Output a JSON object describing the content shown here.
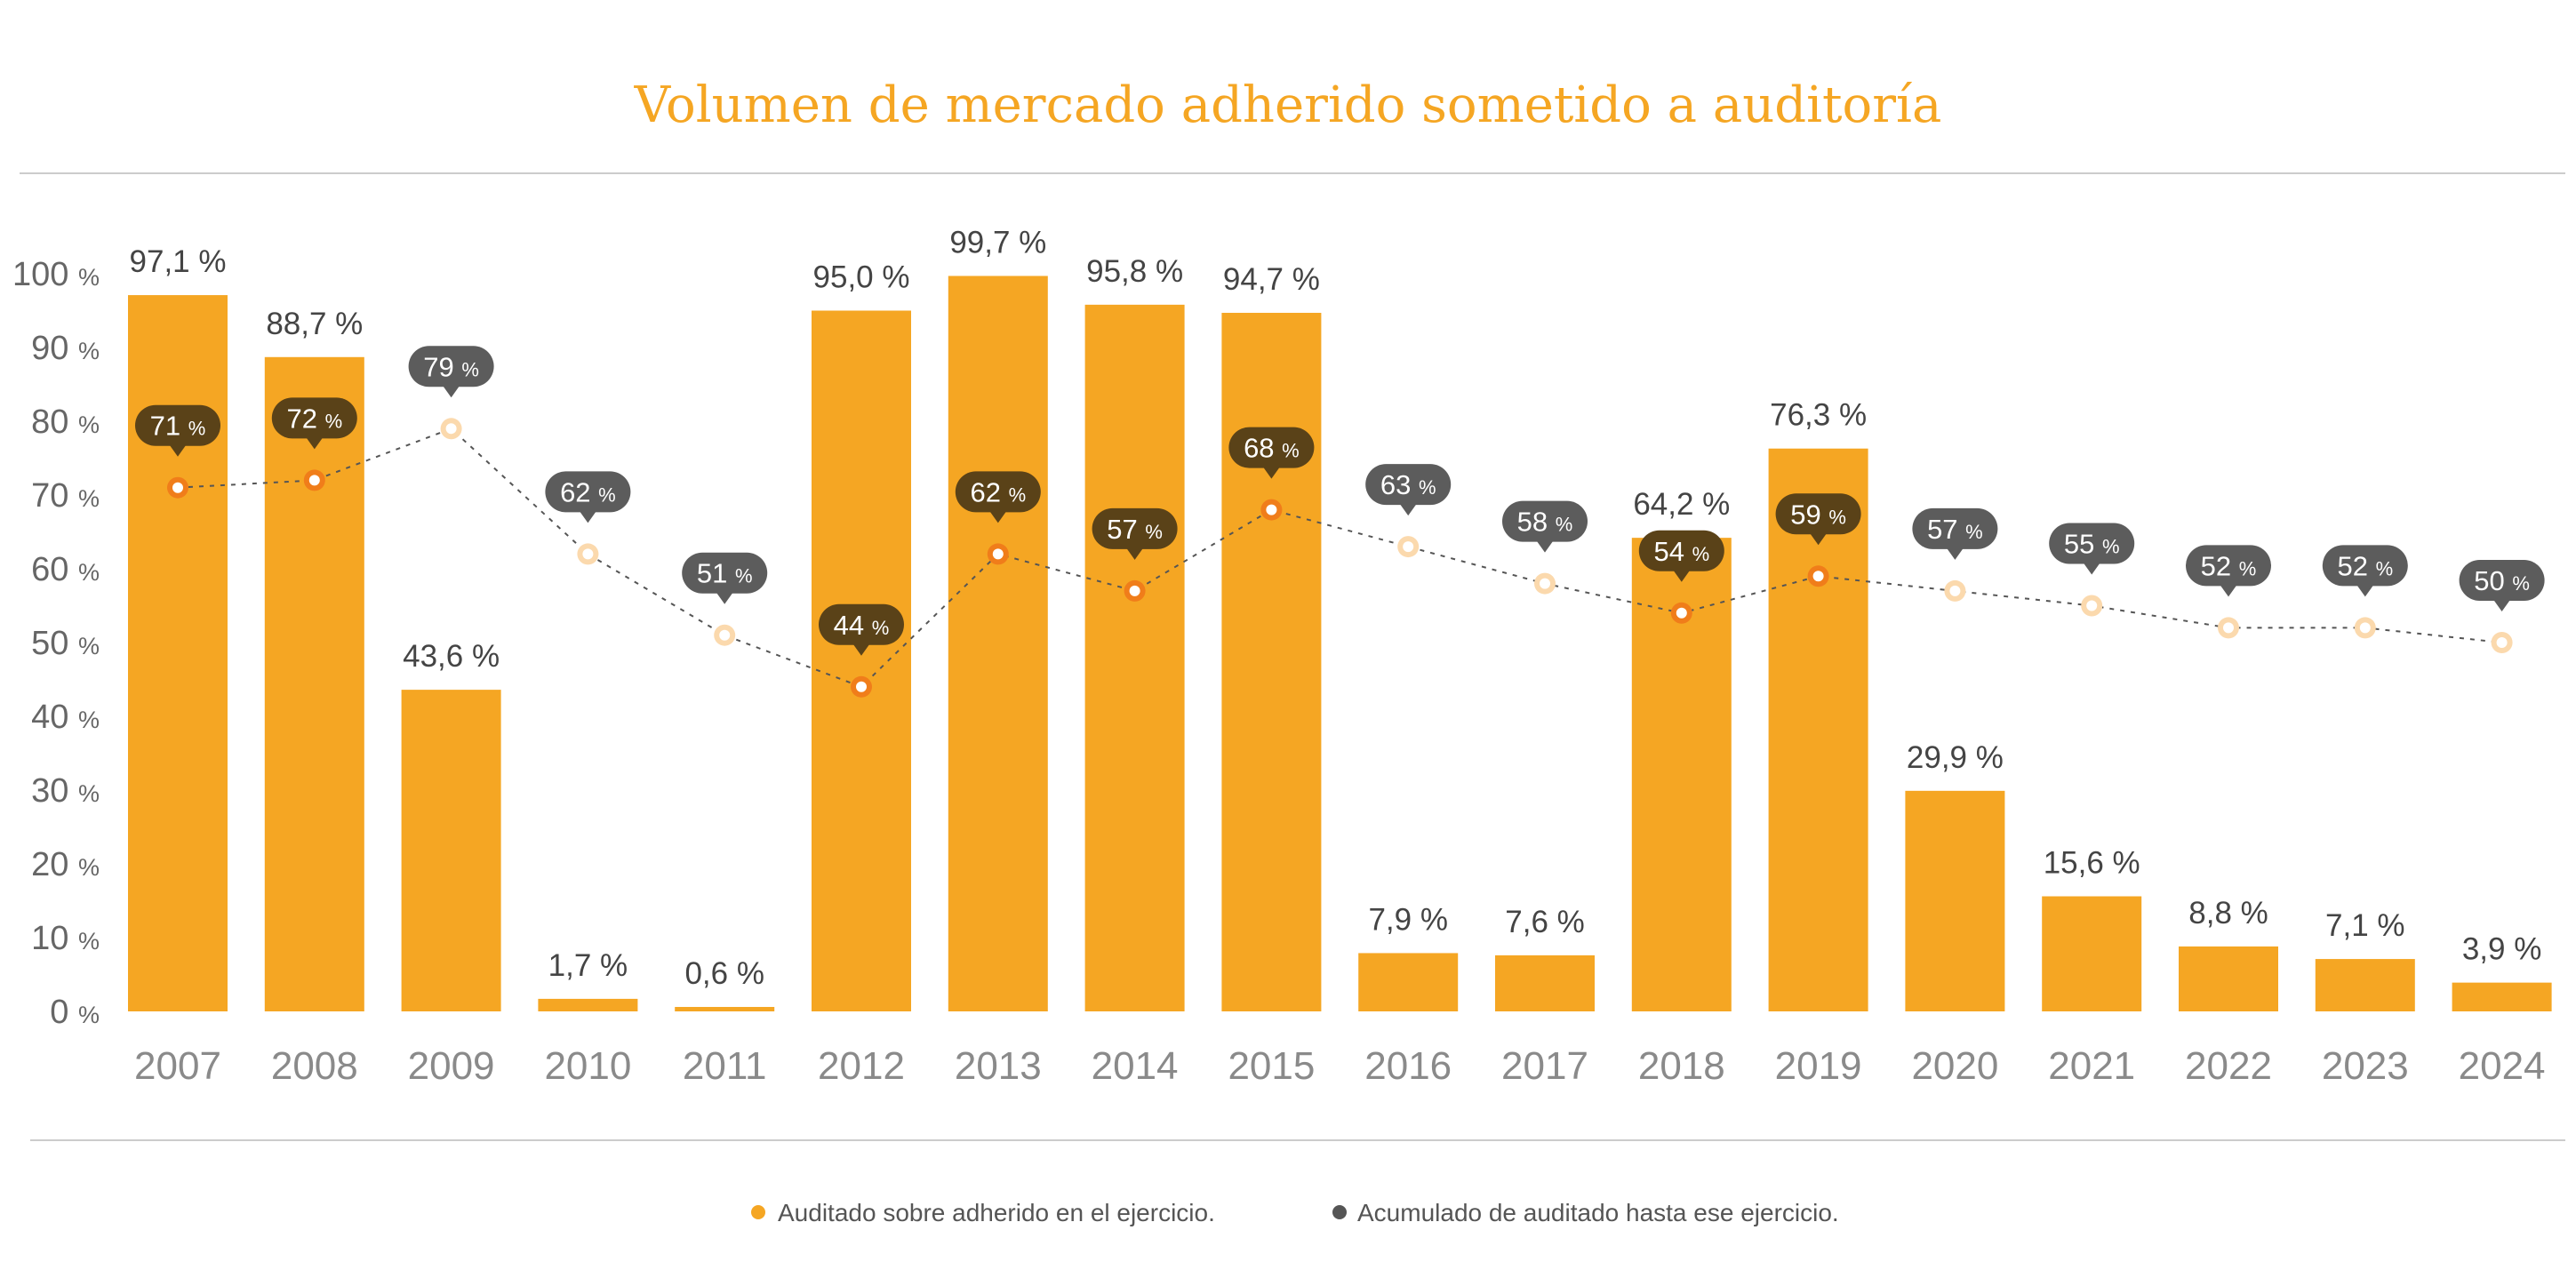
{
  "chart_data": {
    "type": "bar",
    "title": "Volumen de mercado adherido sometido a auditoría",
    "categories": [
      "2007",
      "2008",
      "2009",
      "2010",
      "2011",
      "2012",
      "2013",
      "2014",
      "2015",
      "2016",
      "2017",
      "2018",
      "2019",
      "2020",
      "2021",
      "2022",
      "2023",
      "2024"
    ],
    "ylim": [
      0,
      100
    ],
    "yticks": [
      0,
      10,
      20,
      30,
      40,
      50,
      60,
      70,
      80,
      90,
      100
    ],
    "ytick_unit": "%",
    "series": [
      {
        "name": "Auditado sobre adherido en el ejercicio.",
        "kind": "bar",
        "values": [
          97.1,
          88.7,
          43.6,
          1.7,
          0.6,
          95.0,
          99.7,
          95.8,
          94.7,
          7.9,
          7.6,
          64.2,
          76.3,
          29.9,
          15.6,
          8.8,
          7.1,
          3.9
        ],
        "labels": [
          "97,1 %",
          "88,7 %",
          "43,6 %",
          "1,7 %",
          "0,6 %",
          "95,0 %",
          "99,7 %",
          "95,8 %",
          "94,7 %",
          "7,9 %",
          "7,6 %",
          "64,2 %",
          "76,3 %",
          "29,9 %",
          "15,6 %",
          "8,8 %",
          "7,1 %",
          "3,9 %"
        ]
      },
      {
        "name": "Acumulado de auditado hasta ese ejercicio.",
        "kind": "line",
        "values": [
          71,
          72,
          79,
          62,
          51,
          44,
          62,
          57,
          68,
          63,
          58,
          54,
          59,
          57,
          55,
          52,
          52,
          50
        ],
        "labels": [
          "71",
          "72",
          "79",
          "62",
          "51",
          "44",
          "62",
          "57",
          "68",
          "63",
          "58",
          "54",
          "59",
          "57",
          "55",
          "52",
          "52",
          "50"
        ],
        "unit": "%"
      }
    ],
    "colors": {
      "bar": "#f5a623",
      "title": "#f5a623",
      "bubble_inside": "#5a4218",
      "bubble_outside": "#5c5c5c",
      "marker_inside": "#f07d1a",
      "marker_outside": "#fbd9ad",
      "line": "#555555",
      "legend_dot_1": "#f5a623",
      "legend_dot_2": "#555555"
    },
    "legend_position": "bottom-center"
  }
}
